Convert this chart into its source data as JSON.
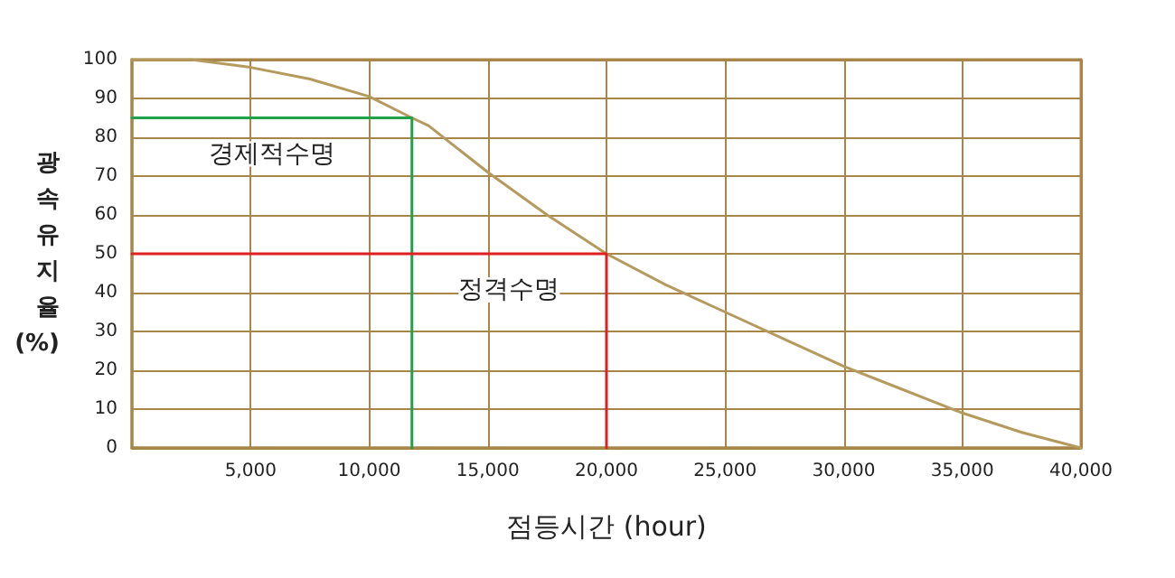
{
  "chart_data": {
    "type": "line",
    "xlabel": "점등시간 (hour)",
    "ylabel": "광속유지율 (%)",
    "xlim": [
      0,
      40000
    ],
    "xticks": [
      {
        "value": 5000,
        "label": "5,000"
      },
      {
        "value": 10000,
        "label": "10,000"
      },
      {
        "value": 15000,
        "label": "15,000"
      },
      {
        "value": 20000,
        "label": "20,000"
      },
      {
        "value": 25000,
        "label": "25,000"
      },
      {
        "value": 30000,
        "label": "30,000"
      },
      {
        "value": 35000,
        "label": "35,000"
      },
      {
        "value": 40000,
        "label": "40,000"
      }
    ],
    "ylim": [
      0,
      100
    ],
    "yticks": [
      0,
      10,
      20,
      30,
      40,
      50,
      60,
      70,
      80,
      90,
      100
    ],
    "grid": true,
    "marker": "none",
    "line_style": "solid",
    "series": [
      {
        "color": "#b59a5e",
        "x": [
          0,
          2500,
          5000,
          7500,
          10000,
          11800,
          12500,
          15000,
          17500,
          20000,
          22500,
          25000,
          27500,
          30000,
          32500,
          35000,
          37500,
          40000
        ],
        "values": [
          100,
          100,
          98,
          95,
          90.5,
          85,
          83,
          71,
          60,
          50,
          42,
          35,
          28,
          21,
          15,
          9,
          4,
          0
        ]
      },
      {
        "color": "#22a04a",
        "x": [
          0,
          11800,
          11800
        ],
        "values": [
          85,
          85,
          0
        ]
      },
      {
        "color": "#e02020",
        "x": [
          0,
          20000,
          20000
        ],
        "values": [
          50,
          50,
          0
        ]
      }
    ],
    "annotations": [
      "경제적수명",
      "정격수명"
    ]
  }
}
